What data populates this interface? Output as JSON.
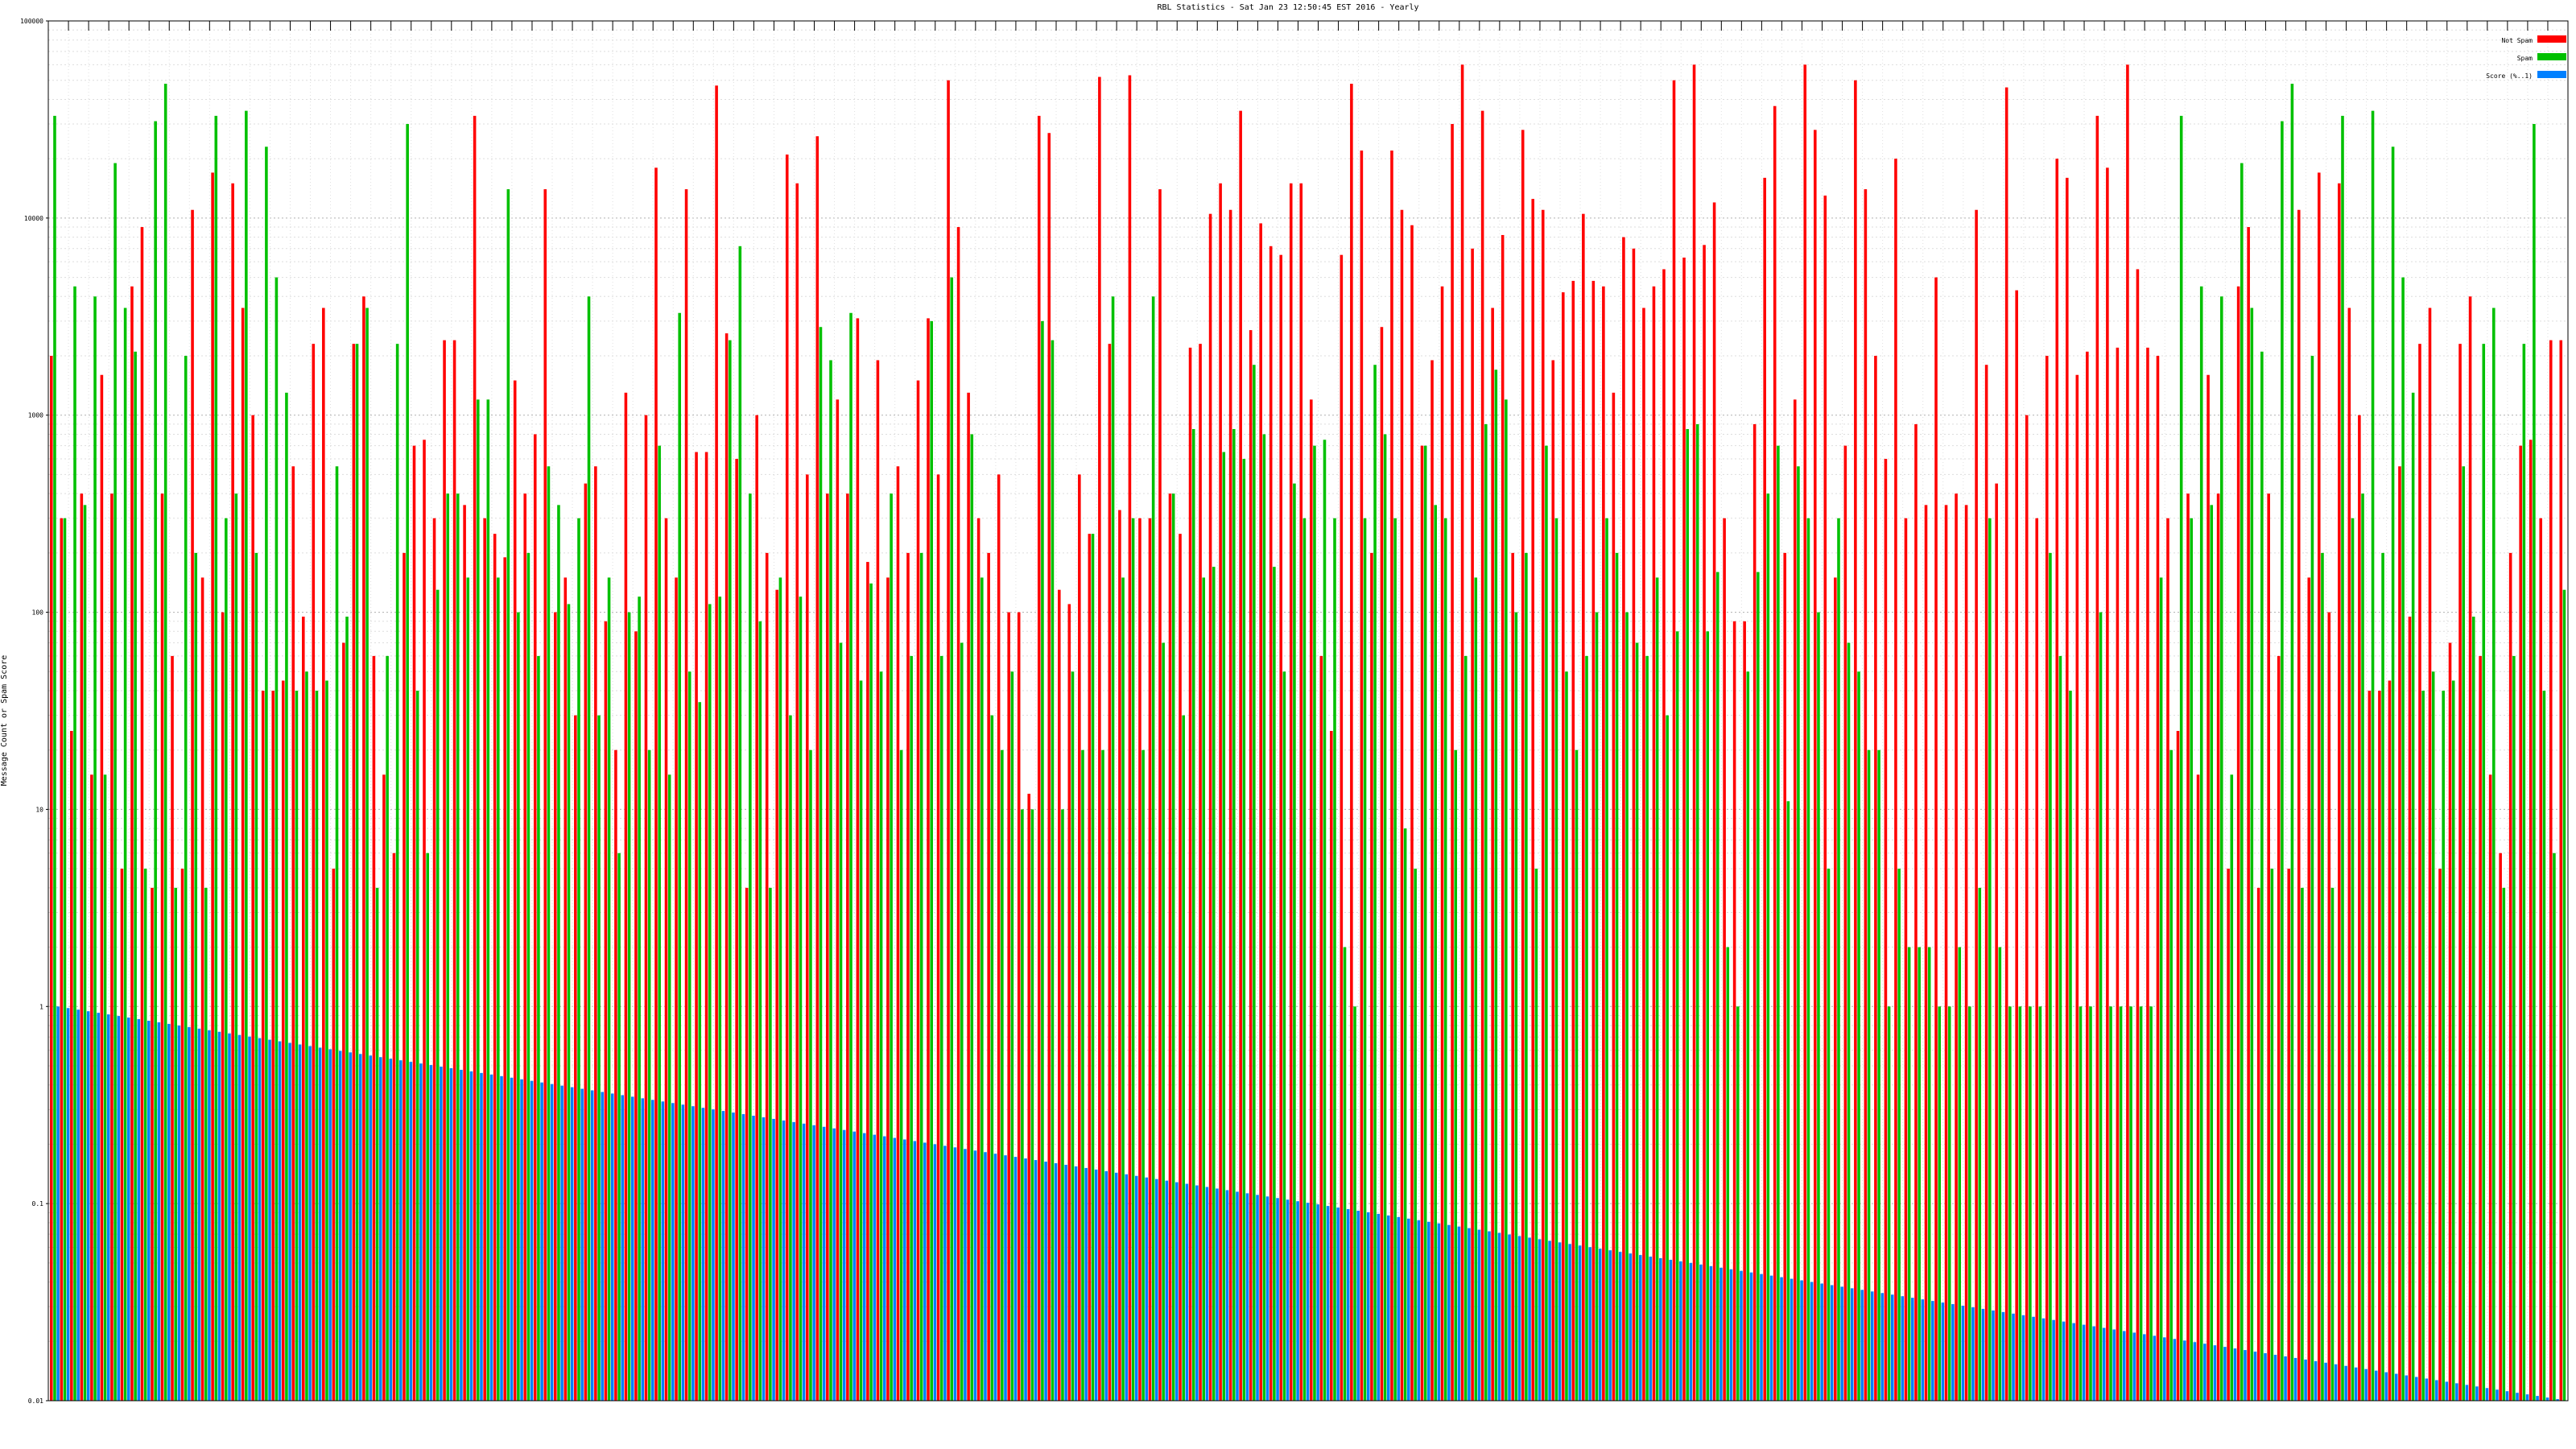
{
  "chart_data": {
    "type": "bar",
    "title": "RBL Statistics - Sat Jan 23 12:50:45 EST 2016 - Yearly",
    "ylabel": "Message Count or Spam Score",
    "xlabel": "",
    "y_scale": "log",
    "ylim": [
      0.01,
      100000
    ],
    "y_ticks": [
      "0.01",
      "0.1",
      "1",
      "10",
      "100",
      "1000",
      "10000",
      "100000"
    ],
    "grid": true,
    "legend_position": "top-right",
    "category_count": 250,
    "category_labels_legible": false,
    "series": [
      {
        "name": "Not Spam",
        "color": "#ff0000",
        "values": [
          2000,
          300,
          25,
          400,
          15,
          1600,
          400,
          5,
          4500,
          9000,
          4,
          400,
          60,
          5,
          11000,
          150,
          17000,
          100,
          15000,
          3500,
          1000,
          40,
          40,
          45,
          550,
          95,
          2300,
          3500,
          5,
          70,
          2300,
          4000,
          60,
          15,
          6,
          200,
          700,
          750,
          300,
          2400,
          2400,
          350,
          33000,
          300,
          250,
          190,
          1500,
          400,
          800,
          14000,
          100,
          150,
          30,
          450,
          550,
          90,
          20,
          1300,
          80,
          1000,
          18000,
          300,
          150,
          14000,
          650,
          650,
          47000,
          2600,
          600,
          4,
          1000,
          200,
          130,
          21000,
          15000,
          500,
          26000,
          400,
          1200,
          400,
          3100,
          180,
          1900,
          150,
          550,
          200,
          1500,
          3100,
          500,
          50000,
          9000,
          1300,
          300,
          200,
          500,
          100,
          100,
          12,
          33000,
          27000,
          130,
          110,
          500,
          250,
          52000,
          2300,
          330,
          53000,
          300,
          300,
          14000,
          400,
          250,
          2200,
          2300,
          10500,
          15000,
          11000,
          35000,
          2700,
          9400,
          7200,
          6500,
          15000,
          15000,
          1200,
          60,
          25,
          6500,
          48000,
          22000,
          200,
          2800,
          22000,
          11000,
          9200,
          700,
          1900,
          4500,
          30000,
          60000,
          7000,
          35000,
          3500,
          8200,
          200,
          28000,
          12500,
          11000,
          1900,
          4200,
          4800,
          10500,
          4800,
          4500,
          1300,
          8000,
          7000,
          3500,
          4500,
          5500,
          50000,
          6300,
          60000,
          7300,
          12000,
          300,
          90,
          90,
          900,
          16000,
          37000,
          200,
          1200,
          60000,
          28000,
          13000,
          150,
          700,
          50000,
          14000,
          2000,
          600,
          20000,
          300,
          900,
          350,
          5000,
          350,
          400,
          350,
          11000,
          1800,
          450,
          46000,
          4300,
          1000,
          300,
          2000,
          20000,
          16000,
          1600,
          2100,
          33000,
          18000,
          2200,
          60000,
          5500,
          2200
        ],
        "cycle_note": "values repeat cyclically across all categories"
      },
      {
        "name": "Spam",
        "color": "#00c000",
        "values": [
          33000,
          300,
          4500,
          350,
          4000,
          15,
          19000,
          3500,
          2100,
          5,
          31000,
          48000,
          4,
          2000,
          200,
          4,
          33000,
          300,
          400,
          35000,
          200,
          23000,
          5000,
          1300,
          40,
          50,
          40,
          45,
          550,
          95,
          2300,
          3500,
          4,
          60,
          2300,
          30000,
          40,
          6,
          130,
          400,
          400,
          150,
          1200,
          1200,
          150,
          14000,
          100,
          200,
          60,
          550,
          350,
          110,
          300,
          4000,
          30,
          150,
          6,
          100,
          120,
          20,
          700,
          15,
          3300,
          50,
          35,
          110,
          120,
          2400,
          7200,
          400,
          90,
          4,
          150,
          30,
          120,
          20,
          2800,
          1900,
          70,
          3300,
          45,
          140,
          50,
          400,
          20,
          60,
          200,
          3000,
          60,
          5000,
          70,
          800,
          150,
          30,
          20,
          50,
          10,
          10,
          3000,
          2400,
          10,
          50,
          20,
          250,
          20,
          4000,
          150,
          300,
          20,
          4000,
          70,
          400,
          30,
          850,
          150,
          170,
          650,
          850,
          600,
          1800,
          800,
          170,
          50,
          450,
          300,
          700,
          750,
          300,
          2,
          1,
          300,
          1800,
          800,
          300,
          8,
          5,
          700,
          350,
          300,
          20,
          60,
          150,
          900,
          1700,
          1200,
          100,
          200,
          5,
          700,
          300,
          50,
          20,
          60,
          100,
          300,
          200,
          100,
          70,
          60,
          150,
          30,
          80,
          850,
          900,
          80,
          160,
          2,
          1,
          50,
          160,
          400,
          700,
          11,
          550,
          300,
          100,
          5,
          300,
          70,
          50,
          20,
          20,
          1,
          5,
          2,
          2,
          2,
          1,
          1,
          2,
          1,
          4,
          300,
          2,
          1,
          1,
          1,
          1,
          200,
          60,
          40,
          1,
          1,
          100,
          1,
          1,
          1,
          1,
          1,
          150,
          20
        ],
        "cycle_note": "values repeat cyclically across all categories"
      },
      {
        "name": "Score (%..1)",
        "color": "#0080ff",
        "start": 1.0,
        "end": 0.01,
        "shape": "monotonic decreasing"
      }
    ]
  }
}
